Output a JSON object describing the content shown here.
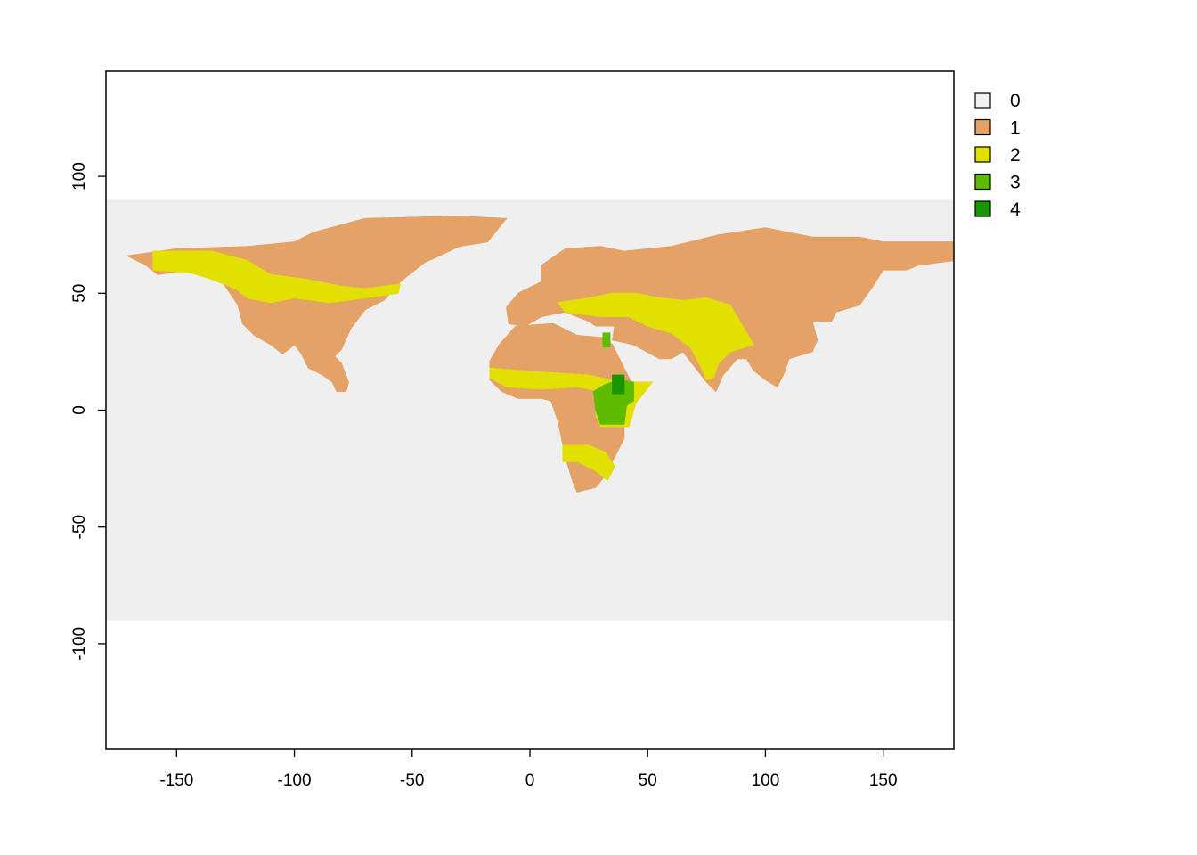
{
  "chart_data": {
    "type": "heatmap",
    "description_units": "longitude / latitude (degrees)",
    "xlim": [
      -180,
      180
    ],
    "ylim": [
      -145,
      145
    ],
    "raster_extent": {
      "x": [
        -180,
        180
      ],
      "y": [
        -90,
        90
      ]
    },
    "x_ticks": [
      -150,
      -100,
      -50,
      0,
      50,
      100,
      150
    ],
    "y_ticks": [
      100,
      50,
      0,
      -50,
      -100
    ],
    "x_tick_labels": [
      "-150",
      "-100",
      "-50",
      "0",
      "50",
      "100",
      "150"
    ],
    "y_tick_labels": [
      "100",
      "50",
      "0",
      "-50",
      "-100"
    ],
    "legend": {
      "position": "top-right",
      "entries": [
        {
          "label": "0",
          "color": "#f2f2f2"
        },
        {
          "label": "1",
          "color": "#e5a266"
        },
        {
          "label": "2",
          "color": "#e2e000"
        },
        {
          "label": "3",
          "color": "#5dbb00"
        },
        {
          "label": "4",
          "color": "#1a9600"
        }
      ]
    },
    "background_color": "#efefef",
    "regions": [
      {
        "class": 1,
        "name": "north-america",
        "polygon": [
          [
            -171,
            66
          ],
          [
            -150,
            69
          ],
          [
            -120,
            70
          ],
          [
            -100,
            72
          ],
          [
            -92,
            76
          ],
          [
            -70,
            82
          ],
          [
            -30,
            83
          ],
          [
            -10,
            82
          ],
          [
            -18,
            72
          ],
          [
            -30,
            70
          ],
          [
            -45,
            63
          ],
          [
            -55,
            55
          ],
          [
            -62,
            47
          ],
          [
            -70,
            43
          ],
          [
            -76,
            35
          ],
          [
            -80,
            26
          ],
          [
            -83,
            23
          ],
          [
            -80,
            20
          ],
          [
            -77,
            12
          ],
          [
            -78,
            8
          ],
          [
            -82,
            8
          ],
          [
            -84,
            12
          ],
          [
            -88,
            15
          ],
          [
            -94,
            18
          ],
          [
            -97,
            24
          ],
          [
            -100,
            28
          ],
          [
            -105,
            24
          ],
          [
            -110,
            28
          ],
          [
            -117,
            32
          ],
          [
            -122,
            37
          ],
          [
            -124,
            45
          ],
          [
            -130,
            54
          ],
          [
            -145,
            60
          ],
          [
            -158,
            58
          ],
          [
            -163,
            62
          ],
          [
            -171,
            66
          ]
        ]
      },
      {
        "class": 1,
        "name": "eurasia",
        "polygon": [
          [
            -10,
            44
          ],
          [
            -9,
            37
          ],
          [
            -2,
            36
          ],
          [
            5,
            40
          ],
          [
            15,
            42
          ],
          [
            25,
            38
          ],
          [
            28,
            36
          ],
          [
            36,
            36
          ],
          [
            35,
            30
          ],
          [
            44,
            28
          ],
          [
            55,
            22
          ],
          [
            60,
            22
          ],
          [
            65,
            25
          ],
          [
            75,
            12
          ],
          [
            79,
            8
          ],
          [
            82,
            15
          ],
          [
            88,
            22
          ],
          [
            92,
            22
          ],
          [
            95,
            17
          ],
          [
            100,
            13
          ],
          [
            105,
            10
          ],
          [
            108,
            16
          ],
          [
            110,
            22
          ],
          [
            120,
            25
          ],
          [
            122,
            30
          ],
          [
            120,
            38
          ],
          [
            128,
            38
          ],
          [
            130,
            42
          ],
          [
            140,
            45
          ],
          [
            145,
            52
          ],
          [
            150,
            60
          ],
          [
            160,
            60
          ],
          [
            165,
            62
          ],
          [
            180,
            64
          ],
          [
            180,
            72
          ],
          [
            150,
            72
          ],
          [
            140,
            74
          ],
          [
            120,
            74
          ],
          [
            100,
            78
          ],
          [
            80,
            75
          ],
          [
            60,
            70
          ],
          [
            40,
            68
          ],
          [
            30,
            70
          ],
          [
            15,
            69
          ],
          [
            5,
            62
          ],
          [
            5,
            55
          ],
          [
            -5,
            50
          ],
          [
            -10,
            44
          ]
        ]
      },
      {
        "class": 1,
        "name": "africa",
        "polygon": [
          [
            -17,
            21
          ],
          [
            -13,
            28
          ],
          [
            -6,
            36
          ],
          [
            10,
            37
          ],
          [
            20,
            32
          ],
          [
            32,
            31
          ],
          [
            35,
            28
          ],
          [
            43,
            12
          ],
          [
            51,
            11
          ],
          [
            45,
            4
          ],
          [
            40,
            -2
          ],
          [
            40,
            -12
          ],
          [
            35,
            -22
          ],
          [
            32,
            -28
          ],
          [
            28,
            -33
          ],
          [
            20,
            -35
          ],
          [
            18,
            -30
          ],
          [
            15,
            -20
          ],
          [
            12,
            -5
          ],
          [
            9,
            4
          ],
          [
            5,
            5
          ],
          [
            -5,
            5
          ],
          [
            -12,
            8
          ],
          [
            -17,
            13
          ],
          [
            -17,
            21
          ]
        ]
      },
      {
        "class": 2,
        "name": "canada-yellow",
        "polygon": [
          [
            -160,
            68
          ],
          [
            -135,
            68
          ],
          [
            -120,
            64
          ],
          [
            -110,
            58
          ],
          [
            -95,
            56
          ],
          [
            -80,
            53
          ],
          [
            -70,
            52
          ],
          [
            -55,
            54
          ],
          [
            -56,
            50
          ],
          [
            -70,
            48
          ],
          [
            -85,
            46
          ],
          [
            -100,
            48
          ],
          [
            -110,
            46
          ],
          [
            -120,
            48
          ],
          [
            -125,
            52
          ],
          [
            -135,
            56
          ],
          [
            -145,
            59
          ],
          [
            -160,
            60
          ],
          [
            -160,
            68
          ]
        ]
      },
      {
        "class": 2,
        "name": "eurasia-yellow",
        "polygon": [
          [
            12,
            46
          ],
          [
            25,
            48
          ],
          [
            35,
            50
          ],
          [
            45,
            50
          ],
          [
            55,
            48
          ],
          [
            65,
            47
          ],
          [
            75,
            48
          ],
          [
            85,
            45
          ],
          [
            95,
            28
          ],
          [
            85,
            25
          ],
          [
            80,
            20
          ],
          [
            78,
            14
          ],
          [
            75,
            13
          ],
          [
            72,
            20
          ],
          [
            68,
            27
          ],
          [
            60,
            33
          ],
          [
            50,
            36
          ],
          [
            42,
            40
          ],
          [
            30,
            40
          ],
          [
            15,
            42
          ],
          [
            12,
            46
          ]
        ]
      },
      {
        "class": 2,
        "name": "sahel-yellow",
        "polygon": [
          [
            -17,
            18
          ],
          [
            -5,
            17
          ],
          [
            10,
            16
          ],
          [
            25,
            15
          ],
          [
            38,
            12
          ],
          [
            52,
            12
          ],
          [
            45,
            3
          ],
          [
            42,
            -7
          ],
          [
            30,
            -7
          ],
          [
            28,
            -2
          ],
          [
            30,
            8
          ],
          [
            20,
            10
          ],
          [
            5,
            9
          ],
          [
            -10,
            10
          ],
          [
            -17,
            14
          ],
          [
            -17,
            18
          ]
        ]
      },
      {
        "class": 2,
        "name": "southern-africa-yellow",
        "polygon": [
          [
            14,
            -15
          ],
          [
            25,
            -15
          ],
          [
            32,
            -18
          ],
          [
            36,
            -24
          ],
          [
            33,
            -30
          ],
          [
            28,
            -26
          ],
          [
            20,
            -22
          ],
          [
            14,
            -22
          ],
          [
            14,
            -15
          ]
        ]
      },
      {
        "class": 3,
        "name": "east-africa-green",
        "polygon": [
          [
            27,
            8
          ],
          [
            32,
            11
          ],
          [
            38,
            13
          ],
          [
            44,
            12
          ],
          [
            44,
            4
          ],
          [
            41,
            2
          ],
          [
            40,
            -6
          ],
          [
            30,
            -6
          ],
          [
            28,
            0
          ],
          [
            27,
            8
          ]
        ]
      },
      {
        "class": 3,
        "name": "nile-green",
        "polygon": [
          [
            31,
            33
          ],
          [
            34,
            33
          ],
          [
            34,
            27
          ],
          [
            31,
            27
          ],
          [
            31,
            33
          ]
        ]
      },
      {
        "class": 4,
        "name": "ethiopia-dark-green",
        "polygon": [
          [
            35,
            15
          ],
          [
            40,
            15
          ],
          [
            40,
            7
          ],
          [
            35,
            7
          ],
          [
            35,
            15
          ]
        ]
      }
    ]
  }
}
